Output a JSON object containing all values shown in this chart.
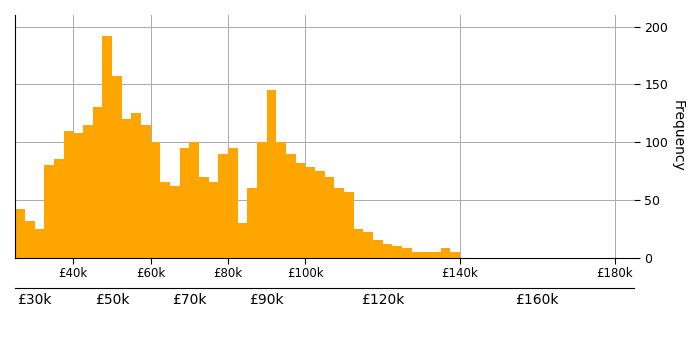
{
  "bar_color": "#FFA500",
  "background_color": "#ffffff",
  "grid_color": "#aaaaaa",
  "ylabel": "Frequency",
  "ylabel_color": "#000000",
  "tick_label_color": "#000000",
  "xlim": [
    25000,
    185000
  ],
  "ylim": [
    0,
    210
  ],
  "yticks": [
    0,
    50,
    100,
    150,
    200
  ],
  "bar_heights": [
    42,
    32,
    25,
    80,
    85,
    110,
    108,
    115,
    130,
    192,
    157,
    120,
    125,
    115,
    100,
    65,
    62,
    95,
    100,
    70,
    65,
    90,
    95,
    30,
    60,
    100,
    145,
    100,
    90,
    82,
    78,
    75,
    70,
    60,
    57,
    25,
    22,
    15,
    12,
    10,
    8,
    5,
    5,
    5,
    8,
    5
  ],
  "xticks_row1": [
    40000,
    60000,
    80000,
    100000,
    140000,
    180000
  ],
  "xtick_labels_row1": [
    "£40k",
    "£60k",
    "£80k",
    "£100k",
    "£140k",
    "£180k"
  ],
  "xticks_row2": [
    30000,
    50000,
    70000,
    90000,
    120000,
    160000
  ],
  "xtick_labels_row2": [
    "£30k",
    "£50k",
    "£70k",
    "£90k",
    "£120k",
    "£160k"
  ]
}
